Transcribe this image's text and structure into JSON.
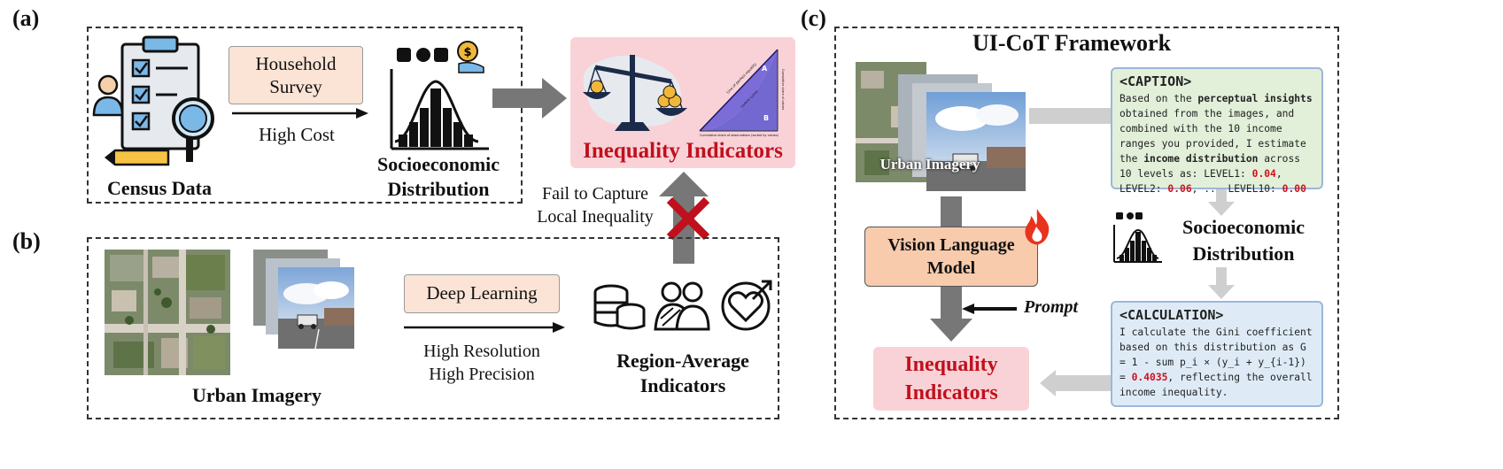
{
  "panels": {
    "a": {
      "label": "(a)",
      "census": "Census Data",
      "survey": "Household Survey",
      "cost": "High Cost",
      "socio": "Socioeconomic Distribution",
      "inequality": "Inequality Indicators",
      "chart_labels": {
        "line": "Line of perfect equality",
        "curve": "Lorenz curve",
        "a": "A",
        "b": "B",
        "xaxis": "Cumulative share of observations (sorted by values)",
        "yaxis": "Cumulative share of values"
      },
      "fail": "Fail to Capture Local Inequality"
    },
    "b": {
      "label": "(b)",
      "dl": "Deep Learning",
      "hr": "High Resolution",
      "hp": "High Precision",
      "urban": "Urban Imagery",
      "region": "Region-Average Indicators"
    },
    "c": {
      "label": "(c)",
      "title": "UI-CoT Framework",
      "urban": "Urban Imagery",
      "vlm": "Vision Language Model",
      "prompt": "Prompt",
      "inequality": "Inequality Indicators",
      "socio": "Socioeconomic Distribution",
      "caption": {
        "header": "<CAPTION>",
        "t1": "Based on the ",
        "b1": "perceptual insights",
        "t2": " obtained from the images, and combined with the 10 income ranges you provided, I estimate the ",
        "b2": "income distribution",
        "t3": " across 10 levels as: LEVEL1: ",
        "v1": "0.04",
        "t4": ", LEVEL2: ",
        "v2": "0.06",
        "t5": ", .., LEVEL10: ",
        "v3": "0.00"
      },
      "calc": {
        "header": "<CALCULATION>",
        "t1": "I calculate the Gini coefficient based on this distribution as G = 1 - sum p_i × (y_i + y_{i-1}) = ",
        "v1": "0.4035",
        "t2": ", reflecting the overall income inequality."
      }
    }
  },
  "colors": {
    "accent_red": "#c0101d",
    "peach": "#fbe4d5",
    "pink": "#f9d2d7",
    "caption_bg": "#e2efd9",
    "calc_bg": "#deebf7",
    "vlm_bg": "#f8cbad"
  },
  "icons": [
    "clipboard-icon",
    "magnifier-icon",
    "pencil-icon",
    "money-bag-icon",
    "distribution-chart-icon",
    "balance-scale-icon",
    "lorenz-curve-chart",
    "coins-stack-icon",
    "people-group-icon",
    "heart-target-icon",
    "flame-icon",
    "red-cross-icon",
    "satellite-image",
    "street-view-image"
  ]
}
